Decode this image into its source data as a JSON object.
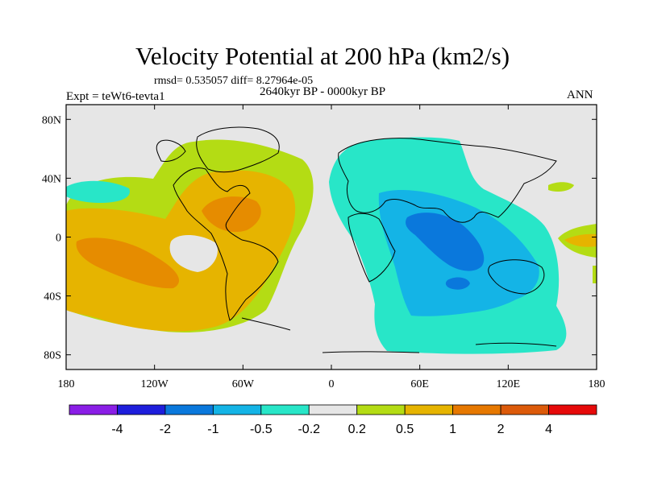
{
  "header": {
    "title": "Velocity Potential at 200 hPa (km2/s)",
    "stats": "rmsd= 0.535057 diff= 8.27964e-05",
    "period": "2640kyr BP - 0000kyr BP",
    "experiment": "Expt = teWt6-tevta1",
    "season": "ANN"
  },
  "chart_data": {
    "type": "heatmap",
    "title": "Velocity Potential at 200 hPa (km2/s)",
    "subtitle": "2640kyr BP - 0000kyr BP",
    "xlabel": "",
    "ylabel": "",
    "x_ticks": [
      "180",
      "120W",
      "60W",
      "0",
      "60E",
      "120E",
      "180"
    ],
    "y_ticks": [
      "80N",
      "40N",
      "0",
      "40S",
      "80S"
    ],
    "x_tick_values": [
      -180,
      -120,
      -60,
      0,
      60,
      120,
      180
    ],
    "y_tick_values": [
      80,
      40,
      0,
      -40,
      -80
    ],
    "xlim": [
      -180,
      180
    ],
    "ylim": [
      -90,
      90
    ],
    "colorbar": {
      "levels": [
        "-4",
        "-2",
        "-1",
        "-0.5",
        "-0.2",
        "0.2",
        "0.5",
        "1",
        "2",
        "4"
      ],
      "colors": [
        "#8a1ee6",
        "#1e1edc",
        "#0a78dc",
        "#14b4e6",
        "#28e6c8",
        "#e6e6e6",
        "#b4dc14",
        "#e6b400",
        "#e67800",
        "#dc5a0a",
        "#e60a0a"
      ]
    },
    "regions": [
      {
        "label": "Pacific/Americas positive anomaly",
        "value_range": [
          0.2,
          2
        ]
      },
      {
        "label": "Caribbean maximum",
        "value_range": [
          1,
          2
        ]
      },
      {
        "label": "Africa/Indian Ocean negative anomaly",
        "value_range": [
          -1,
          -0.2
        ]
      },
      {
        "label": "Indian Ocean minimum",
        "value_range": [
          -2,
          -1
        ]
      },
      {
        "label": "Southern Ocean negative band",
        "value_range": [
          -0.5,
          -0.2
        ]
      }
    ]
  }
}
